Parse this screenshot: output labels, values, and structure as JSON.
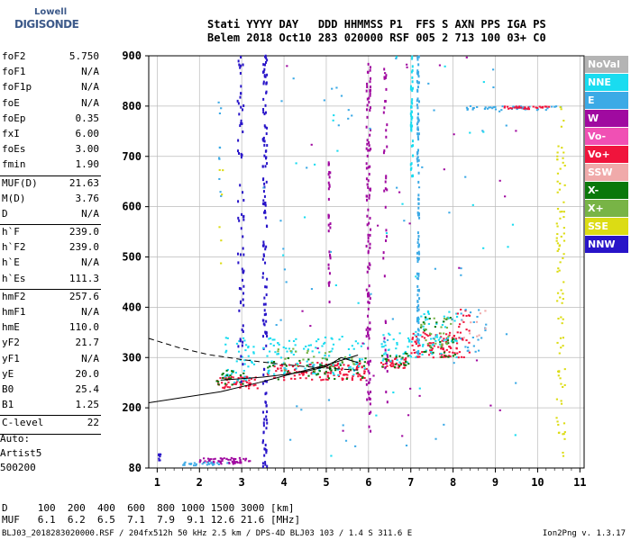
{
  "logo": {
    "line1": "Lowell",
    "line2": "DIGISONDE"
  },
  "header": {
    "line1": "Stati YYYY DAY   DDD HHMMSS P1  FFS S AXN PPS IGA PS",
    "line2": "Belem 2018 Oct10 283 020000 RSF 005 2 713 100 03+ C0"
  },
  "params": [
    {
      "k": "foF2",
      "v": "5.750"
    },
    {
      "k": "foF1",
      "v": "N/A"
    },
    {
      "k": "foF1p",
      "v": "N/A"
    },
    {
      "k": "foE",
      "v": "N/A"
    },
    {
      "k": "foEp",
      "v": "0.35"
    },
    {
      "k": "fxI",
      "v": "6.00"
    },
    {
      "k": "foEs",
      "v": "3.00"
    },
    {
      "k": "fmin",
      "v": "1.90"
    },
    {
      "sep": true
    },
    {
      "k": "MUF(D)",
      "v": "21.63"
    },
    {
      "k": "M(D)",
      "v": "3.76"
    },
    {
      "k": "D",
      "v": "N/A"
    },
    {
      "sep": true
    },
    {
      "k": "h`F",
      "v": "239.0"
    },
    {
      "k": "h`F2",
      "v": "239.0"
    },
    {
      "k": "h`E",
      "v": "N/A"
    },
    {
      "k": "h`Es",
      "v": "111.3"
    },
    {
      "sep": true
    },
    {
      "k": "hmF2",
      "v": "257.6"
    },
    {
      "k": "hmF1",
      "v": "N/A"
    },
    {
      "k": "hmE",
      "v": "110.0"
    },
    {
      "k": "yF2",
      "v": "21.7"
    },
    {
      "k": "yF1",
      "v": "N/A"
    },
    {
      "k": "yE",
      "v": "20.0"
    },
    {
      "k": "B0",
      "v": "25.4"
    },
    {
      "k": "B1",
      "v": "1.25"
    },
    {
      "sep": true
    },
    {
      "k": "C-level",
      "v": "22"
    },
    {
      "sep": true
    }
  ],
  "notes": [
    "Auto:",
    "Artist5",
    "500200"
  ],
  "dtable": {
    "line1": "D     100  200  400  600  800 1000 1500 3000 [km]",
    "line2": "MUF   6.1  6.2  6.5  7.1  7.9  9.1 12.6 21.6 [MHz]"
  },
  "footer": "BLJ03_2018283020000.RSF / 204fx512h 50 kHz 2.5 km / DPS-4D BLJ03 103 / 1.4 S 311.6 E",
  "version": "Ion2Png v. 1.3.17",
  "legend": [
    {
      "name": "NoVal",
      "color": "#b4b4b4"
    },
    {
      "name": "NNE",
      "color": "#19dcf0"
    },
    {
      "name": "E",
      "color": "#3caae6"
    },
    {
      "name": "W",
      "color": "#a00aa0"
    },
    {
      "name": "Vo-",
      "color": "#f050b4"
    },
    {
      "name": "Vo+",
      "color": "#f0143c"
    },
    {
      "name": "SSW",
      "color": "#f0aaaa"
    },
    {
      "name": "X-",
      "color": "#0a780a"
    },
    {
      "name": "X+",
      "color": "#78b446"
    },
    {
      "name": "SSE",
      "color": "#dcdc14"
    },
    {
      "name": "NNW",
      "color": "#2814c8"
    }
  ],
  "chart_data": {
    "type": "scatter",
    "xlim": [
      0.8,
      11.1
    ],
    "ylim": [
      80,
      900
    ],
    "x_ticks": [
      1,
      2,
      3,
      4,
      5,
      6,
      7,
      8,
      9,
      10,
      11
    ],
    "y_ticks": [
      80,
      200,
      300,
      400,
      500,
      600,
      700,
      800,
      900
    ],
    "grid": true,
    "y_scale": "nonlinear",
    "y_axis_map": [
      [
        80,
        0
      ],
      [
        200,
        0.146
      ],
      [
        300,
        0.268
      ],
      [
        400,
        0.39
      ],
      [
        500,
        0.512
      ],
      [
        600,
        0.634
      ],
      [
        700,
        0.756
      ],
      [
        800,
        0.878
      ],
      [
        900,
        1.0
      ]
    ],
    "clusters": [
      {
        "series": "W",
        "x": [
          2.0,
          3.2
        ],
        "y": [
          88,
          100
        ],
        "n": 60
      },
      {
        "series": "E",
        "x": [
          1.5,
          2.7
        ],
        "y": [
          85,
          92
        ],
        "n": 25
      },
      {
        "series": "Vo+",
        "x": [
          2.4,
          3.4
        ],
        "y": [
          238,
          262
        ],
        "n": 60
      },
      {
        "series": "NNE",
        "x": [
          2.6,
          3.3
        ],
        "y": [
          250,
          340
        ],
        "n": 45
      },
      {
        "series": "X-",
        "x": [
          2.4,
          3.1
        ],
        "y": [
          245,
          275
        ],
        "n": 20
      },
      {
        "series": "Vo+",
        "x": [
          3.6,
          6.0
        ],
        "y": [
          255,
          290
        ],
        "n": 130
      },
      {
        "series": "NNE",
        "x": [
          3.6,
          5.9
        ],
        "y": [
          265,
          345
        ],
        "n": 110
      },
      {
        "series": "X-",
        "x": [
          3.6,
          6.0
        ],
        "y": [
          255,
          300
        ],
        "n": 45
      },
      {
        "series": "X+",
        "x": [
          3.8,
          5.8
        ],
        "y": [
          270,
          320
        ],
        "n": 30
      },
      {
        "series": "Vo+",
        "x": [
          6.3,
          6.9
        ],
        "y": [
          278,
          300
        ],
        "n": 40
      },
      {
        "series": "NNE",
        "x": [
          6.3,
          7.0
        ],
        "y": [
          290,
          350
        ],
        "n": 35
      },
      {
        "series": "X-",
        "x": [
          6.3,
          7.0
        ],
        "y": [
          280,
          310
        ],
        "n": 20
      },
      {
        "series": "Vo+",
        "x": [
          7.0,
          8.1
        ],
        "y": [
          300,
          350
        ],
        "n": 90
      },
      {
        "series": "NNE",
        "x": [
          7.0,
          8.1
        ],
        "y": [
          300,
          400
        ],
        "n": 60
      },
      {
        "series": "X-",
        "x": [
          7.2,
          8.1
        ],
        "y": [
          300,
          380
        ],
        "n": 30
      },
      {
        "series": "X+",
        "x": [
          7.2,
          8.0
        ],
        "y": [
          320,
          380
        ],
        "n": 25
      },
      {
        "series": "Vo+",
        "x": [
          8.1,
          8.4
        ],
        "y": [
          300,
          400
        ],
        "n": 25
      },
      {
        "series": "E",
        "x": [
          8.1,
          8.8
        ],
        "y": [
          310,
          400
        ],
        "n": 20
      },
      {
        "series": "E",
        "x": [
          8.3,
          10.6
        ],
        "y": [
          792,
          800
        ],
        "n": 45
      },
      {
        "series": "Vo+",
        "x": [
          9.2,
          10.3
        ],
        "y": [
          794,
          800
        ],
        "n": 30
      },
      {
        "series": "SSE",
        "x": [
          10.45,
          10.65
        ],
        "y": [
          85,
          800
        ],
        "n": 90
      },
      {
        "series": "NNW",
        "x": [
          3.5,
          3.6
        ],
        "y": [
          80,
          900
        ],
        "n": 140,
        "vertical": true
      },
      {
        "series": "NNW",
        "x": [
          2.9,
          3.05
        ],
        "y": [
          250,
          900
        ],
        "n": 70,
        "vertical": true
      },
      {
        "series": "W",
        "x": [
          5.95,
          6.05
        ],
        "y": [
          150,
          900
        ],
        "n": 120,
        "vertical": true
      },
      {
        "series": "W",
        "x": [
          6.35,
          6.45
        ],
        "y": [
          200,
          880
        ],
        "n": 40,
        "vertical": true
      },
      {
        "series": "NNE",
        "x": [
          7.0,
          7.05
        ],
        "y": [
          660,
          900
        ],
        "n": 45,
        "vertical": true
      },
      {
        "series": "E",
        "x": [
          7.15,
          7.2
        ],
        "y": [
          300,
          900
        ],
        "n": 110,
        "vertical": true
      },
      {
        "series": "W",
        "x": [
          5.05,
          5.1
        ],
        "y": [
          400,
          700
        ],
        "n": 30,
        "vertical": true
      },
      {
        "series": "E",
        "x": [
          2.45,
          2.55
        ],
        "y": [
          620,
          820
        ],
        "n": 10
      },
      {
        "series": "SSE",
        "x": [
          2.45,
          2.6
        ],
        "y": [
          480,
          680
        ],
        "n": 6
      },
      {
        "series": "NNW",
        "x": [
          1.0,
          1.1
        ],
        "y": [
          90,
          110
        ],
        "n": 8
      },
      {
        "series": "SSW",
        "x": [
          8.2,
          8.8
        ],
        "y": [
          330,
          400
        ],
        "n": 10
      },
      {
        "series": "E",
        "x": [
          3.5,
          9.5
        ],
        "y": [
          100,
          900
        ],
        "n": 60
      },
      {
        "series": "W",
        "x": [
          3.5,
          9.5
        ],
        "y": [
          100,
          900
        ],
        "n": 30
      },
      {
        "series": "NNE",
        "x": [
          3.5,
          9.5
        ],
        "y": [
          100,
          900
        ],
        "n": 30
      }
    ],
    "profile_lines": [
      {
        "style": "solid",
        "x": [
          0.8,
          2.5,
          3.4,
          4.2,
          5.0,
          5.75
        ],
        "y": [
          210,
          232,
          250,
          268,
          285,
          305
        ]
      },
      {
        "style": "solid",
        "x": [
          2.5,
          3.0,
          3.5,
          4.0,
          4.5,
          5.0,
          5.35,
          5.75
        ],
        "y": [
          255,
          258,
          261,
          266,
          272,
          282,
          300,
          290
        ]
      },
      {
        "style": "dashed",
        "x": [
          0.8,
          1.5,
          2.2,
          3.0,
          3.8,
          4.5,
          5.2,
          5.75
        ],
        "y": [
          338,
          320,
          306,
          296,
          288,
          282,
          278,
          275
        ]
      }
    ]
  }
}
